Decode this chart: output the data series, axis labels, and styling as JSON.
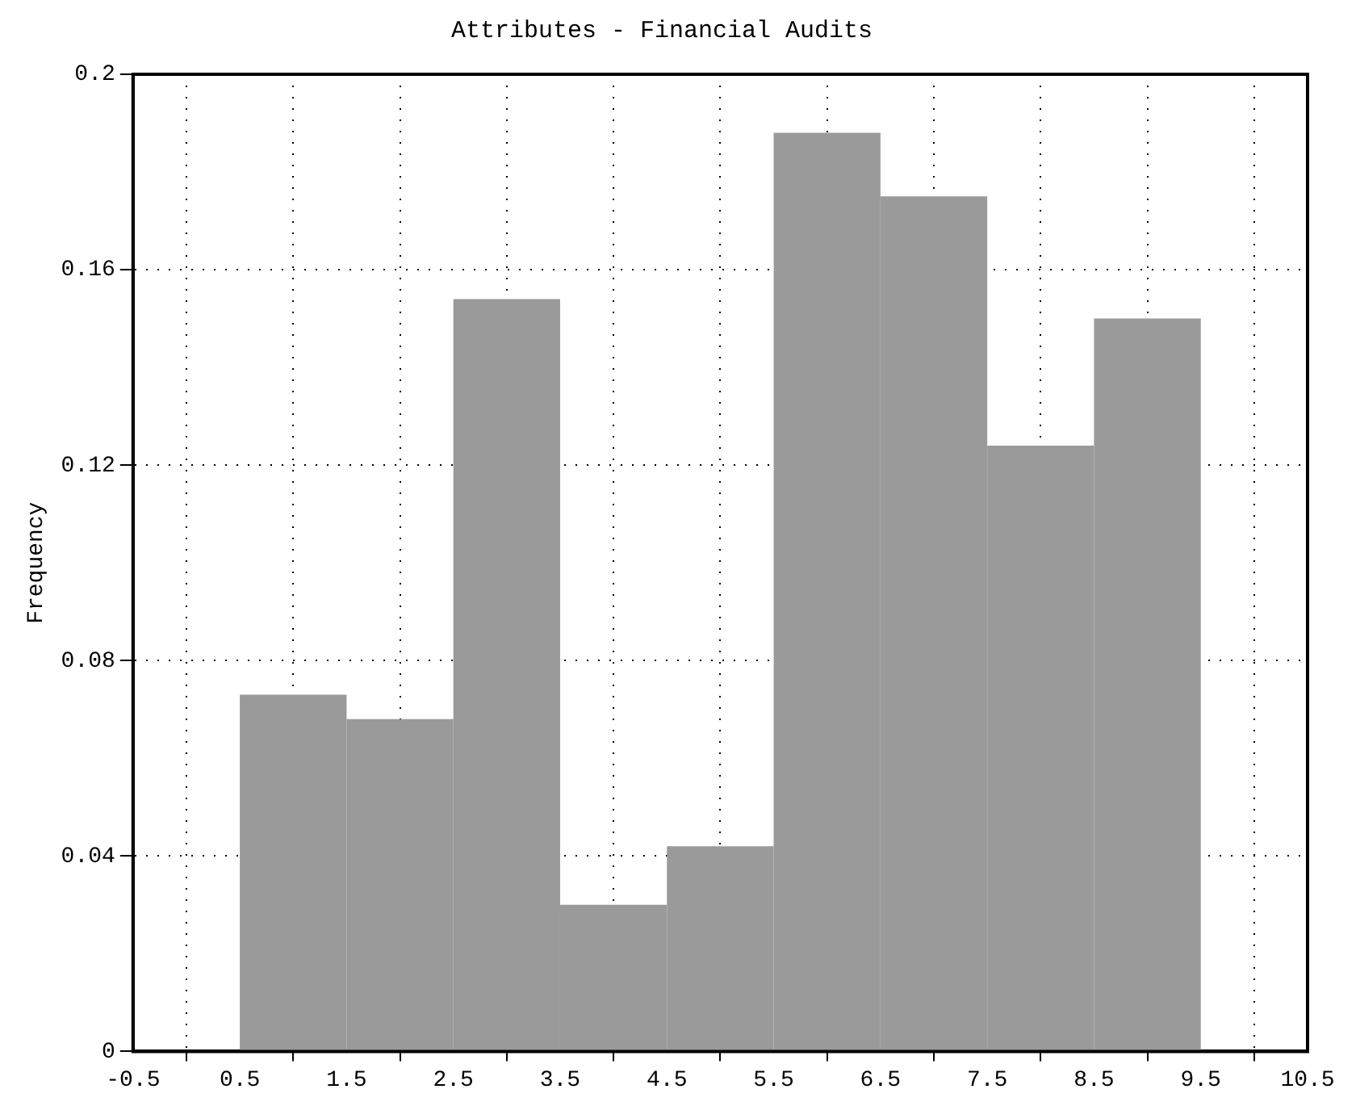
{
  "chart_data": {
    "type": "histogram",
    "title": "Attributes - Financial Audits",
    "ylabel": "Frequency",
    "bins": [
      0.5,
      1.5,
      2.5,
      3.5,
      4.5,
      5.5,
      6.5,
      7.5,
      8.5,
      9.5
    ],
    "values": [
      0.073,
      0.068,
      0.154,
      0.03,
      0.042,
      0.188,
      0.175,
      0.124,
      0.15
    ],
    "color": "#9a9a9a",
    "xlim": [
      -0.5,
      10.5
    ],
    "xticks": [
      -0.5,
      0.5,
      1.5,
      2.5,
      3.5,
      4.5,
      5.5,
      6.5,
      7.5,
      8.5,
      9.5,
      10.5
    ],
    "ylim": [
      0,
      0.2
    ],
    "yticks": [
      0,
      0.04,
      0.08,
      0.12,
      0.16,
      0.2
    ],
    "grid": true,
    "legend": false
  }
}
